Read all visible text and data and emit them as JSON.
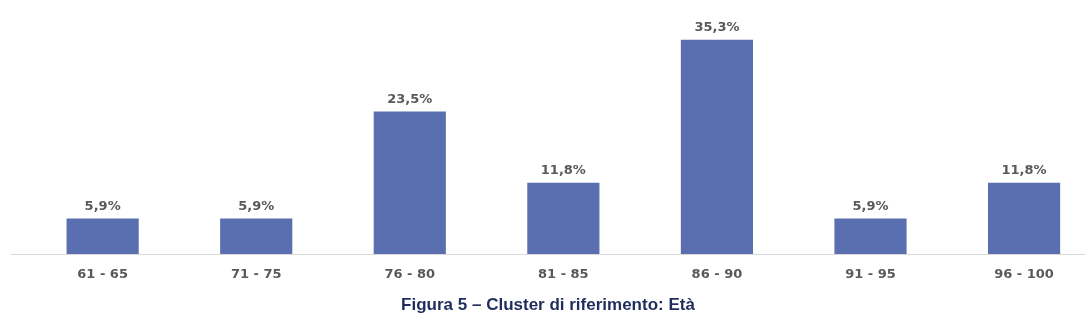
{
  "chart_data": {
    "type": "bar",
    "title": "Figura 5 – Cluster di riferimento: Età",
    "categories": [
      "61 - 65",
      "71 - 75",
      "76 - 80",
      "81 - 85",
      "86 - 90",
      "91 - 95",
      "96 - 100"
    ],
    "values": [
      5.9,
      5.9,
      23.5,
      11.8,
      35.3,
      5.9,
      11.8
    ],
    "value_labels": [
      "5,9%",
      "5,9%",
      "23,5%",
      "11,8%",
      "35,3%",
      "5,9%",
      "11,8%"
    ],
    "color": "#5a6fb0",
    "grid": false
  }
}
